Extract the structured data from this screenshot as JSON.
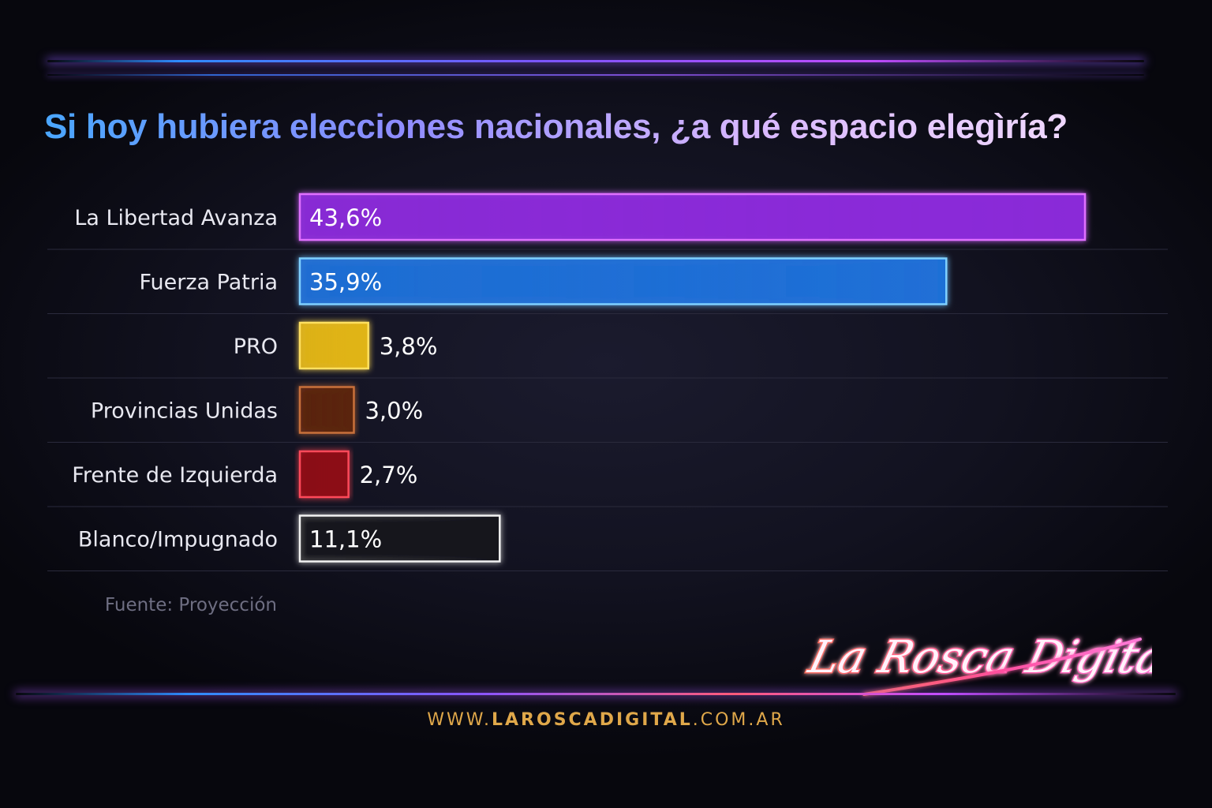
{
  "title": "Si hoy hubiera elecciones nacionales, ¿a qué espacio elegìría?",
  "source": "Fuente: Proyección",
  "brand": {
    "logo_text": "La Rosca Digital"
  },
  "site": {
    "prefix": "WWW.",
    "main": "LAROSCADIGITAL",
    "suffix": ".COM.AR"
  },
  "chart_data": {
    "type": "bar",
    "orientation": "horizontal",
    "title": "Si hoy hubiera elecciones nacionales, ¿a qué espacio elegìría?",
    "categories": [
      "La Libertad Avanza",
      "Fuerza Patria",
      "PRO",
      "Provincias Unidas",
      "Frente de Izquierda",
      "Blanco/Impugnado"
    ],
    "values": [
      43.6,
      35.9,
      3.8,
      3.0,
      2.7,
      11.1
    ],
    "value_labels": [
      "43,6%",
      "35,9%",
      "3,8%",
      "3,0%",
      "2,7%",
      "11,1%"
    ],
    "unit": "%",
    "colors": [
      "#8a2bd8",
      "#1f6fd6",
      "#e0b418",
      "#5a2410",
      "#8c0c14",
      "#14141c"
    ],
    "edge_colors": [
      "#e070ff",
      "#7fd0ff",
      "#ffe060",
      "#c8703a",
      "#ff4a5a",
      "#f2f2f2"
    ],
    "grid": false,
    "legend": "none"
  }
}
